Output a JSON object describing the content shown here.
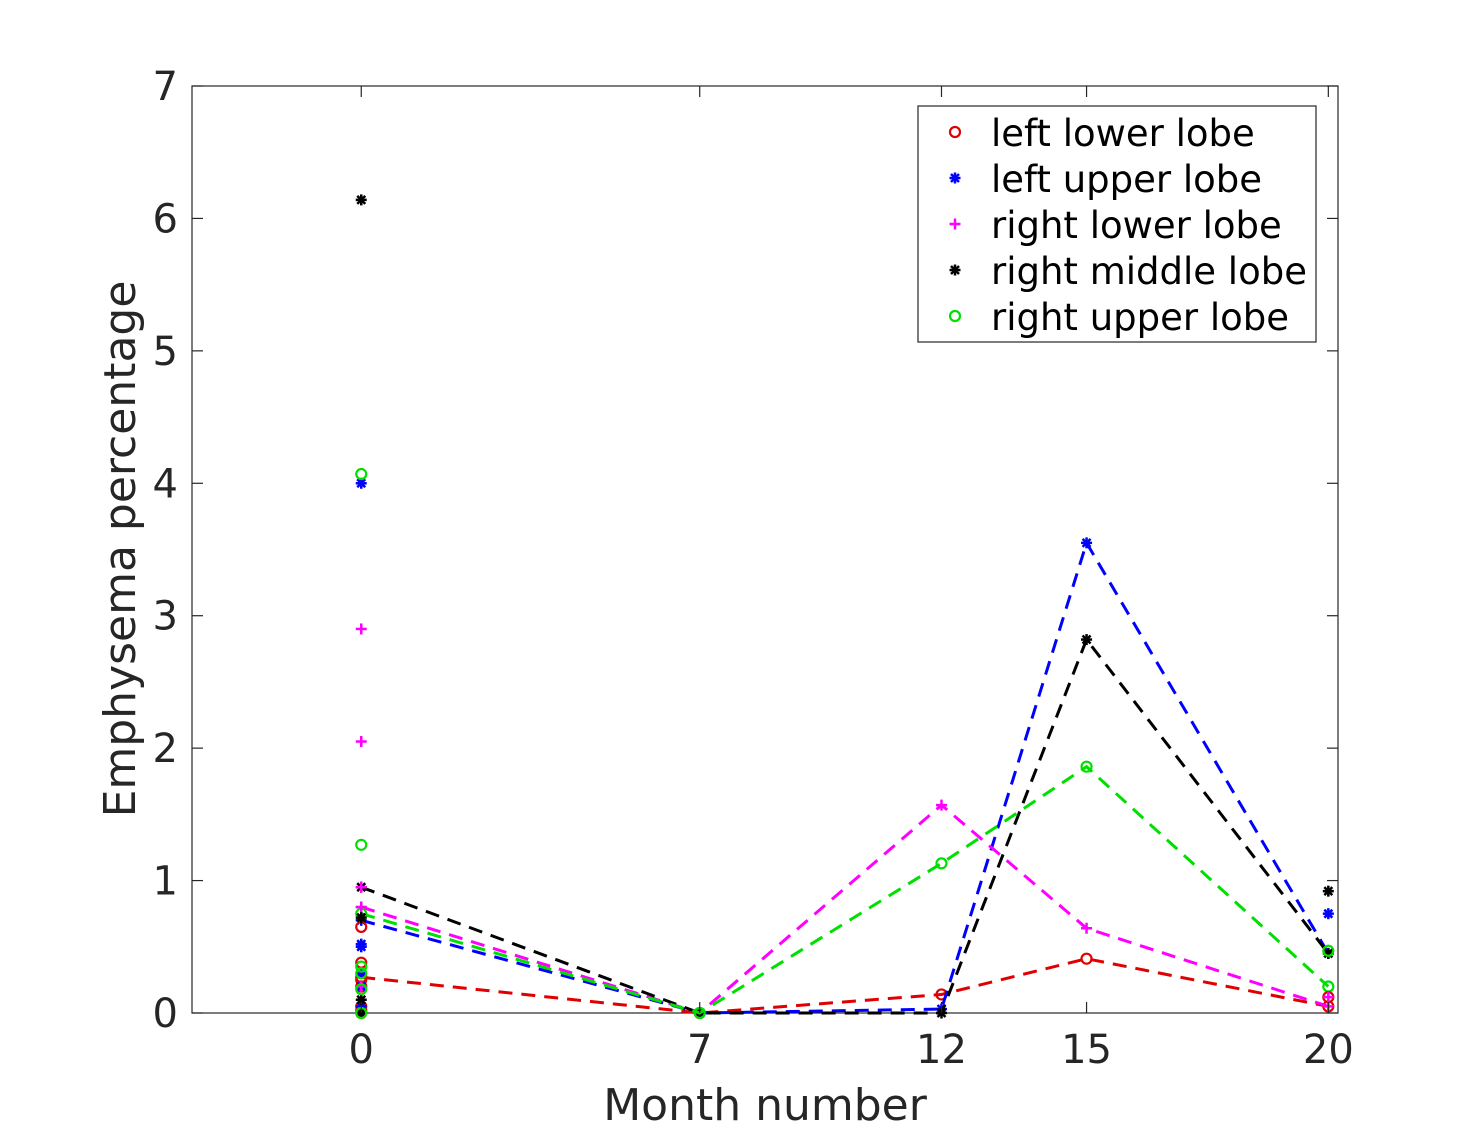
{
  "chart_data": {
    "type": "line",
    "title": "",
    "xlabel": "Month number",
    "ylabel": "Emphysema percentage",
    "xlim": [
      -3.5,
      20.2
    ],
    "ylim": [
      0,
      7
    ],
    "xticks": [
      0,
      7,
      12,
      15,
      20
    ],
    "xtick_labels": [
      "0",
      "7",
      "12",
      "15",
      "20"
    ],
    "yticks": [
      0,
      1,
      2,
      3,
      4,
      5,
      6,
      7
    ],
    "ytick_labels": [
      "0",
      "1",
      "2",
      "3",
      "4",
      "5",
      "6",
      "7"
    ],
    "grid": false,
    "legend_position": "top-right",
    "series": [
      {
        "name": "left lower lobe",
        "color": "#e00000",
        "marker": "circle",
        "points_x": [
          0,
          0,
          0,
          0,
          0,
          0,
          0,
          20
        ],
        "points_y": [
          0.65,
          0.38,
          0.25,
          0.2,
          0.05,
          0.02,
          0.0,
          0.12
        ],
        "trend_x": [
          0,
          7,
          12,
          15,
          20
        ],
        "trend_y": [
          0.27,
          0.0,
          0.14,
          0.41,
          0.05
        ]
      },
      {
        "name": "left upper lobe",
        "color": "#0000ff",
        "marker": "star",
        "points_x": [
          0,
          0,
          0,
          0,
          0,
          0,
          0,
          20
        ],
        "points_y": [
          4.0,
          0.52,
          0.5,
          0.3,
          0.2,
          0.05,
          0.0,
          0.75
        ],
        "trend_x": [
          0,
          7,
          12,
          15,
          20
        ],
        "trend_y": [
          0.7,
          0.0,
          0.03,
          3.55,
          0.45
        ]
      },
      {
        "name": "right lower lobe",
        "color": "#ff00ff",
        "marker": "plus",
        "points_x": [
          0,
          0,
          0,
          0,
          0,
          0,
          20
        ],
        "points_y": [
          2.9,
          2.05,
          0.95,
          0.8,
          0.2,
          0.0,
          0.12
        ],
        "trend_x": [
          0,
          7,
          12,
          15,
          20
        ],
        "trend_y": [
          0.8,
          0.0,
          1.57,
          0.64,
          0.05
        ]
      },
      {
        "name": "right middle lobe",
        "color": "#000000",
        "marker": "asterisk",
        "points_x": [
          0,
          0,
          0,
          0,
          20
        ],
        "points_y": [
          6.14,
          0.72,
          0.1,
          0.0,
          0.92
        ],
        "trend_x": [
          0,
          7,
          12,
          15,
          20
        ],
        "trend_y": [
          0.95,
          0.0,
          0.0,
          2.82,
          0.45
        ]
      },
      {
        "name": "right upper lobe",
        "color": "#00e000",
        "marker": "circle",
        "points_x": [
          0,
          0,
          0,
          0,
          0,
          0,
          20
        ],
        "points_y": [
          4.07,
          1.27,
          0.35,
          0.3,
          0.18,
          0.0,
          0.47
        ],
        "trend_x": [
          0,
          7,
          12,
          15,
          20
        ],
        "trend_y": [
          0.75,
          0.0,
          1.13,
          1.86,
          0.2
        ]
      }
    ]
  }
}
